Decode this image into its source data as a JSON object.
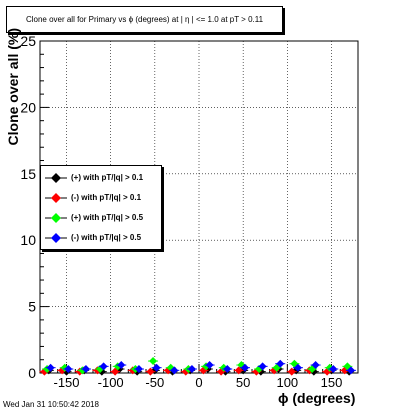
{
  "header": {
    "title": "Clone  over all for Primary vs ϕ (degrees) at | η | <= 1.0 at pT > 0.11"
  },
  "footer": {
    "timestamp": "Wed Jan 31 10:50:42 2018"
  },
  "chart_data": {
    "type": "scatter",
    "xlabel": "ϕ (degrees)",
    "ylabel": "Clone  over all (%)",
    "xlim": [
      -180,
      180
    ],
    "ylim": [
      0,
      25
    ],
    "xticks": [
      -150,
      -100,
      -50,
      0,
      50,
      100,
      150
    ],
    "yticks": [
      0,
      5,
      10,
      15,
      20,
      25
    ],
    "grid": true,
    "legend_position": "left-middle",
    "series": [
      {
        "name": "(+) with pT/|q| > 0.1",
        "color": "#000000",
        "x": [
          -170,
          -150,
          -130,
          -110,
          -90,
          -70,
          -50,
          -30,
          -10,
          10,
          30,
          50,
          70,
          90,
          110,
          130,
          150,
          170
        ],
        "y": [
          0.2,
          0.1,
          0.2,
          0.1,
          0.3,
          0.1,
          0.2,
          0.1,
          0.2,
          0.3,
          0.1,
          0.2,
          0.1,
          0.3,
          0.2,
          0.1,
          0.2,
          0.1
        ]
      },
      {
        "name": "(-) with pT/|q| > 0.1",
        "color": "#ff0000",
        "x": [
          -175,
          -155,
          -135,
          -115,
          -95,
          -75,
          -55,
          -35,
          -15,
          5,
          25,
          45,
          65,
          85,
          105,
          125,
          145,
          165
        ],
        "y": [
          0.1,
          0.2,
          0.1,
          0.2,
          0.1,
          0.2,
          0.1,
          0.2,
          0.1,
          0.2,
          0.1,
          0.2,
          0.1,
          0.2,
          0.1,
          0.2,
          0.1,
          0.2
        ]
      },
      {
        "name": "(+) with pT/|q| > 0.5",
        "color": "#00ff00",
        "x": [
          -172,
          -152,
          -132,
          -112,
          -92,
          -72,
          -52,
          -32,
          -12,
          8,
          28,
          48,
          68,
          88,
          108,
          128,
          148,
          168
        ],
        "y": [
          0.3,
          0.4,
          0.2,
          0.3,
          0.5,
          0.3,
          0.9,
          0.4,
          0.3,
          0.5,
          0.4,
          0.6,
          0.3,
          0.4,
          0.7,
          0.3,
          0.4,
          0.5
        ]
      },
      {
        "name": "(-) with pT/|q| > 0.5",
        "color": "#0000ff",
        "x": [
          -168,
          -148,
          -128,
          -108,
          -88,
          -68,
          -48,
          -28,
          -8,
          12,
          32,
          52,
          72,
          92,
          112,
          132,
          152,
          172
        ],
        "y": [
          0.4,
          0.3,
          0.3,
          0.5,
          0.6,
          0.3,
          0.4,
          0.2,
          0.3,
          0.6,
          0.3,
          0.4,
          0.5,
          0.7,
          0.4,
          0.6,
          0.3,
          0.2
        ]
      }
    ]
  }
}
